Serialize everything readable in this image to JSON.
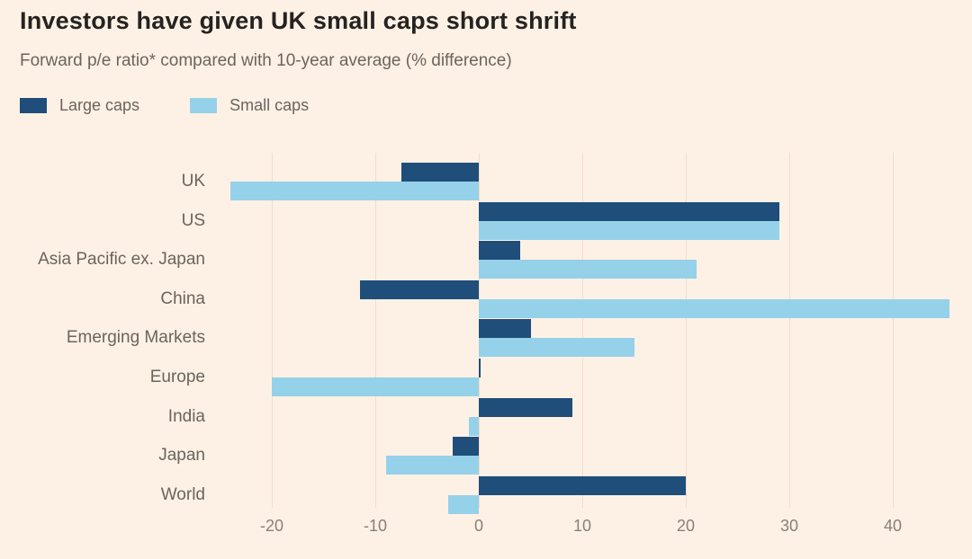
{
  "header": {
    "title": "Investors have given UK small caps short shrift",
    "subtitle": "Forward p/e ratio* compared with 10-year average (% difference)"
  },
  "legend": {
    "items": [
      {
        "label": "Large caps",
        "color": "#1f4e7a"
      },
      {
        "label": "Small caps",
        "color": "#96d1ea"
      }
    ]
  },
  "colors": {
    "background": "#fdf1e5",
    "title_text": "#262220",
    "secondary_text": "#6b645e",
    "tick_text": "#87807a",
    "gridline": "#f1dccd",
    "large_caps": "#1f4e7a",
    "small_caps": "#96d1ea"
  },
  "chart_data": {
    "type": "bar",
    "orientation": "horizontal",
    "title": "Investors have given UK small caps short shrift",
    "subtitle": "Forward p/e ratio* compared with 10-year average (% difference)",
    "categories": [
      "UK",
      "US",
      "Asia Pacific ex. Japan",
      "China",
      "Emerging Markets",
      "Europe",
      "India",
      "Japan",
      "World"
    ],
    "series": [
      {
        "name": "Large caps",
        "color": "#1f4e7a",
        "values": [
          -7.5,
          29,
          4,
          -11.5,
          5,
          0.2,
          9,
          -2.5,
          20
        ]
      },
      {
        "name": "Small caps",
        "color": "#96d1ea",
        "values": [
          -24,
          29,
          21,
          45.5,
          15,
          -20,
          -1,
          -9,
          -3
        ]
      }
    ],
    "xticks": [
      -20,
      -10,
      0,
      10,
      20,
      30,
      40
    ],
    "xlim": [
      -24.7,
      45.9
    ],
    "grid": "vertical-faint",
    "legend_position": "top-left"
  }
}
